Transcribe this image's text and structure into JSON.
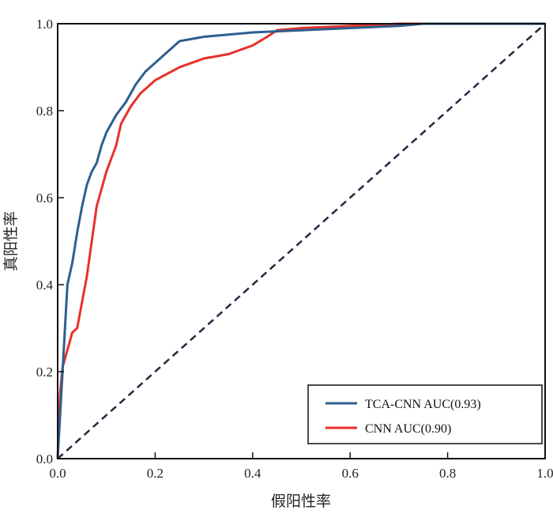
{
  "chart_data": {
    "type": "line",
    "title": "",
    "xlabel": "假阳性率",
    "ylabel": "真阳性率",
    "xlim": [
      0,
      1
    ],
    "ylim": [
      0,
      1
    ],
    "xticks": [
      "0.0",
      "0.2",
      "0.4",
      "0.6",
      "0.8",
      "1.0"
    ],
    "yticks": [
      "0.0",
      "0.2",
      "0.4",
      "0.6",
      "0.8",
      "1.0"
    ],
    "legend_position": "bottom-right",
    "grid": false,
    "series": [
      {
        "name": "TCA-CNN AUC(0.93)",
        "color": "#2e5f8f",
        "x": [
          0,
          0.005,
          0.01,
          0.015,
          0.02,
          0.03,
          0.04,
          0.05,
          0.06,
          0.07,
          0.08,
          0.09,
          0.1,
          0.12,
          0.14,
          0.16,
          0.18,
          0.2,
          0.22,
          0.25,
          0.3,
          0.35,
          0.4,
          0.5,
          0.6,
          0.7,
          0.75,
          1.0
        ],
        "y": [
          0,
          0.1,
          0.2,
          0.3,
          0.4,
          0.45,
          0.52,
          0.58,
          0.63,
          0.66,
          0.68,
          0.72,
          0.75,
          0.79,
          0.82,
          0.86,
          0.89,
          0.91,
          0.93,
          0.96,
          0.97,
          0.975,
          0.98,
          0.985,
          0.99,
          0.995,
          1.0,
          1.0
        ]
      },
      {
        "name": "CNN AUC(0.90)",
        "color": "#e8302a",
        "x": [
          0,
          0.005,
          0.01,
          0.02,
          0.03,
          0.04,
          0.05,
          0.06,
          0.07,
          0.08,
          0.09,
          0.1,
          0.12,
          0.13,
          0.15,
          0.17,
          0.2,
          0.25,
          0.3,
          0.35,
          0.4,
          0.43,
          0.45,
          0.5,
          0.6,
          0.7,
          1.0
        ],
        "y": [
          0,
          0.15,
          0.21,
          0.25,
          0.29,
          0.3,
          0.36,
          0.42,
          0.5,
          0.58,
          0.62,
          0.66,
          0.72,
          0.77,
          0.81,
          0.84,
          0.87,
          0.9,
          0.92,
          0.93,
          0.95,
          0.97,
          0.985,
          0.99,
          0.995,
          1.0,
          1.0
        ]
      },
      {
        "name": "chance",
        "color": "#2a2440",
        "dashed": true,
        "x": [
          0,
          1
        ],
        "y": [
          0,
          1
        ]
      }
    ]
  }
}
